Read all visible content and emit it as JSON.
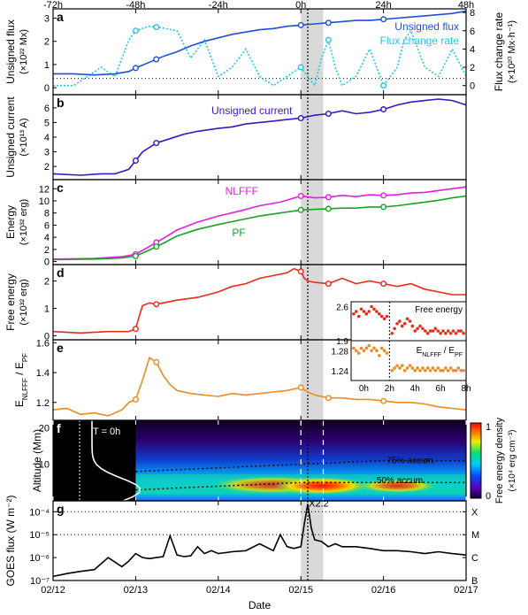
{
  "figure": {
    "top_axis": {
      "ticks": [
        "-72h",
        "-48h",
        "-24h",
        "0h",
        "24h",
        "48h"
      ],
      "values": [
        -72,
        -48,
        -24,
        0,
        24,
        48
      ]
    },
    "bottom_axis": {
      "label": "Date",
      "ticks": [
        "02/12",
        "02/13",
        "02/14",
        "02/15",
        "02/16",
        "02/17"
      ],
      "values": [
        -72,
        -48,
        -24,
        0,
        24,
        48
      ]
    },
    "x_range_hours": [
      -72,
      48
    ],
    "flare_window_hours": [
      0,
      6.5
    ],
    "flare_peak_hours": [
      2
    ]
  },
  "panels": {
    "a": {
      "letter": "a",
      "ylabel": "Unsigned flux",
      "yunit": "(×10²² Mx)",
      "ylabel2": "Flux change rate",
      "yunit2": "(×10²⁰ Mx·h⁻¹)",
      "legend1": "Unsigned flux",
      "legend2": "Flux change rate",
      "yticks": [
        "0",
        "1",
        "2",
        "3"
      ],
      "y2ticks": [
        "0",
        "2",
        "4",
        "6",
        "8"
      ]
    },
    "b": {
      "letter": "b",
      "ylabel": "Unsigned current",
      "yunit": "(×10¹³ A)",
      "legend": "Unsigned current",
      "yticks": [
        "2",
        "3",
        "4",
        "5",
        "6"
      ]
    },
    "c": {
      "letter": "c",
      "ylabel": "Energy",
      "yunit": "(×10³² erg)",
      "label_nlfff": "NLFFF",
      "label_pf": "PF",
      "yticks": [
        "0",
        "2",
        "4",
        "6",
        "8",
        "10",
        "12"
      ]
    },
    "d": {
      "letter": "d",
      "ylabel": "Free energy",
      "yunit": "(×10³² erg)",
      "yticks": [
        "0",
        "1",
        "2"
      ]
    },
    "e": {
      "letter": "e",
      "ylabel": "E",
      "ylabel_sub": "NLFFF",
      "ylabel_mid": " / E",
      "ylabel_sub2": "PF",
      "yticks": [
        "1.2",
        "1.4",
        "1.6"
      ]
    },
    "f": {
      "letter": "f",
      "ylabel": "Altitude (Mm)",
      "yticks": [
        "10",
        "20"
      ],
      "time_label": "T = 0h",
      "contour75": "75% accum.",
      "contour50": "50% accum.",
      "colorbar_label": "Free energy density",
      "colorbar_unit": "(×10⁴ erg cm⁻³)",
      "colorbar_ticks": [
        "0",
        "1"
      ]
    },
    "g": {
      "letter": "g",
      "ylabel": "GOES flux (W m⁻²)",
      "yticks": [
        "10⁻⁴",
        "10⁻⁵",
        "10⁻⁶",
        "10⁻⁷"
      ],
      "class_labels": [
        "X",
        "M",
        "C",
        "B"
      ],
      "flare_label": "X2.2"
    },
    "inset": {
      "title1": "Free energy",
      "title2_main": "E",
      "title2_sub": "NLFFF",
      "title2_mid": " / E",
      "title2_sub2": "PF",
      "yticks1": [
        "2.6",
        "1.9"
      ],
      "yticks2": [
        "1.28",
        "1.24"
      ],
      "xticks": [
        "0h",
        "2h",
        "4h",
        "6h",
        "8h"
      ]
    }
  },
  "colors": {
    "flux": "#1f4fd8",
    "rate": "#22c7e6",
    "current": "#3b16c2",
    "nlfff": "#e320e0",
    "pf": "#18a324",
    "free": "#e82a1a",
    "ratio": "#f08a1e",
    "goes": "#000000",
    "shade": "#d9d9d9"
  },
  "chart_data": [
    {
      "type": "line",
      "title": "",
      "ylabel": "Unsigned flux (×10²² Mx)",
      "ylim": [
        -0.3,
        3.4
      ],
      "y2label": "Flux change rate (×10²⁰ Mx·h⁻¹)",
      "y2lim": [
        -1,
        8.4
      ],
      "series": [
        {
          "name": "Unsigned flux",
          "axis": "left",
          "x": [
            -72,
            -66,
            -60,
            -54,
            -50,
            -48,
            -44,
            -40,
            -36,
            -32,
            -28,
            -24,
            -20,
            -16,
            -12,
            -8,
            -4,
            0,
            4,
            8,
            12,
            16,
            20,
            24,
            28,
            32,
            36,
            40,
            44,
            48
          ],
          "values": [
            0.6,
            0.6,
            0.55,
            0.6,
            0.7,
            0.85,
            1.1,
            1.35,
            1.55,
            1.8,
            2.0,
            2.15,
            2.3,
            2.4,
            2.5,
            2.55,
            2.65,
            2.7,
            2.75,
            2.8,
            2.85,
            2.9,
            2.9,
            2.95,
            3.0,
            3.05,
            3.1,
            3.15,
            3.2,
            3.3
          ]
        },
        {
          "name": "Flux change rate",
          "axis": "right",
          "x": [
            -72,
            -66,
            -62,
            -58,
            -54,
            -50,
            -48,
            -44,
            -40,
            -36,
            -32,
            -28,
            -24,
            -20,
            -16,
            -12,
            -8,
            -4,
            0,
            2,
            4,
            6,
            8,
            10,
            12,
            16,
            20,
            24,
            28,
            30,
            32,
            36,
            40,
            44,
            48
          ],
          "values": [
            0,
            0,
            1,
            2,
            1,
            5,
            6,
            6.5,
            6.3,
            6,
            3,
            5,
            1,
            2,
            4,
            1,
            0,
            1,
            2,
            1,
            0,
            3,
            5,
            2,
            0,
            1,
            4,
            0,
            2,
            5,
            6,
            2,
            1,
            4,
            1
          ]
        }
      ]
    },
    {
      "type": "line",
      "title": "",
      "ylabel": "Unsigned current (×10¹³ A)",
      "ylim": [
        1.1,
        6.9
      ],
      "series": [
        {
          "name": "Unsigned current",
          "x": [
            -72,
            -64,
            -58,
            -54,
            -50,
            -48,
            -46,
            -42,
            -38,
            -34,
            -30,
            -24,
            -20,
            -16,
            -12,
            -8,
            -4,
            0,
            4,
            8,
            12,
            16,
            20,
            24,
            28,
            32,
            36,
            40,
            44,
            48
          ],
          "values": [
            1.5,
            1.4,
            1.5,
            1.5,
            1.8,
            2.4,
            3.0,
            3.6,
            3.9,
            4.2,
            4.4,
            4.6,
            4.7,
            4.9,
            5.0,
            5.1,
            5.2,
            5.3,
            5.5,
            5.6,
            5.8,
            5.6,
            5.7,
            5.9,
            6.2,
            6.4,
            6.5,
            6.6,
            6.5,
            6.2
          ]
        }
      ]
    },
    {
      "type": "line",
      "title": "",
      "ylabel": "Energy (×10³² erg)",
      "ylim": [
        -0.5,
        13.5
      ],
      "series": [
        {
          "name": "NLFFF",
          "x": [
            -72,
            -60,
            -52,
            -48,
            -44,
            -40,
            -36,
            -30,
            -24,
            -18,
            -12,
            -6,
            0,
            4,
            8,
            12,
            16,
            20,
            24,
            28,
            32,
            36,
            40,
            44,
            48
          ],
          "values": [
            0.4,
            0.5,
            0.8,
            1.2,
            2.5,
            3.8,
            5.2,
            6.5,
            7.5,
            8.3,
            9.2,
            9.8,
            10.8,
            10.5,
            10.6,
            10.9,
            10.7,
            11.0,
            10.9,
            11.0,
            11.3,
            11.4,
            11.7,
            12.0,
            12.3
          ]
        },
        {
          "name": "PF",
          "x": [
            -72,
            -60,
            -52,
            -48,
            -44,
            -40,
            -36,
            -30,
            -24,
            -18,
            -12,
            -6,
            0,
            4,
            8,
            12,
            16,
            20,
            24,
            28,
            32,
            36,
            40,
            44,
            48
          ],
          "values": [
            0.3,
            0.4,
            0.6,
            0.9,
            1.9,
            3.0,
            4.2,
            5.3,
            6.1,
            6.8,
            7.5,
            8.0,
            8.5,
            8.6,
            8.7,
            8.8,
            8.8,
            9.0,
            9.0,
            9.2,
            9.5,
            9.8,
            10.1,
            10.5,
            10.8
          ]
        }
      ]
    },
    {
      "type": "line",
      "title": "",
      "ylabel": "Free energy (×10³² erg)",
      "ylim": [
        -0.15,
        2.6
      ],
      "series": [
        {
          "name": "",
          "x": [
            -72,
            -64,
            -56,
            -52,
            -50,
            -48,
            -47,
            -46,
            -44,
            -42,
            -40,
            -36,
            -30,
            -24,
            -20,
            -16,
            -12,
            -8,
            -4,
            -2,
            0,
            1,
            2,
            4,
            8,
            12,
            16,
            20,
            24,
            28,
            32,
            36,
            40,
            44,
            48
          ],
          "values": [
            0.15,
            0.1,
            0.15,
            0.15,
            0.15,
            0.25,
            0.7,
            1.1,
            1.2,
            1.15,
            1.2,
            1.3,
            1.4,
            1.6,
            1.8,
            1.9,
            2.1,
            2.2,
            2.3,
            2.45,
            2.35,
            2.1,
            2.0,
            1.95,
            1.9,
            2.1,
            1.9,
            2.0,
            1.9,
            1.8,
            1.9,
            1.7,
            1.6,
            1.5,
            1.5
          ]
        }
      ]
    },
    {
      "type": "line",
      "title": "",
      "ylabel": "E_NLFFF / E_PF",
      "ylim": [
        1.08,
        1.62
      ],
      "series": [
        {
          "name": "",
          "x": [
            -72,
            -68,
            -64,
            -60,
            -56,
            -52,
            -50,
            -48,
            -46,
            -44,
            -42,
            -40,
            -38,
            -36,
            -32,
            -28,
            -24,
            -20,
            -16,
            -12,
            -8,
            -4,
            0,
            2,
            4,
            8,
            12,
            16,
            20,
            24,
            28,
            32,
            36,
            40,
            44,
            48
          ],
          "values": [
            1.15,
            1.16,
            1.12,
            1.13,
            1.11,
            1.15,
            1.2,
            1.22,
            1.35,
            1.5,
            1.47,
            1.38,
            1.32,
            1.28,
            1.26,
            1.25,
            1.24,
            1.26,
            1.25,
            1.26,
            1.27,
            1.28,
            1.3,
            1.27,
            1.25,
            1.23,
            1.23,
            1.22,
            1.22,
            1.21,
            1.2,
            1.2,
            1.19,
            1.17,
            1.16,
            1.15
          ]
        }
      ]
    },
    {
      "type": "heatmap",
      "title": "",
      "ylabel": "Altitude (Mm)",
      "ylim": [
        0,
        22
      ],
      "colorbar": "Free energy density (×10⁴ erg cm⁻³)",
      "clim": [
        0,
        1
      ],
      "contours": [
        {
          "name": "75% accum.",
          "x": [
            -48,
            -24,
            0,
            24,
            48
          ],
          "values": [
            8,
            9,
            10,
            11,
            11
          ]
        },
        {
          "name": "50% accum.",
          "x": [
            -48,
            -24,
            0,
            24,
            48
          ],
          "values": [
            3,
            4,
            5,
            5,
            5
          ]
        }
      ]
    },
    {
      "type": "line",
      "title": "",
      "ylabel": "GOES flux (W m⁻²)",
      "yscale": "log",
      "ylim": [
        1e-07,
        0.0003
      ],
      "series": [
        {
          "name": "",
          "x": [
            -72,
            -68,
            -64,
            -60,
            -56,
            -52,
            -50,
            -48,
            -46,
            -44,
            -42,
            -40,
            -38,
            -36,
            -34,
            -32,
            -30,
            -28,
            -26,
            -24,
            -20,
            -16,
            -12,
            -8,
            -6,
            -4,
            -2,
            0,
            1,
            2,
            3,
            4,
            6,
            8,
            10,
            12,
            16,
            20,
            24,
            28,
            32,
            36,
            40,
            44,
            48
          ],
          "values": [
            1.5e-07,
            2e-07,
            2.5e-07,
            3e-07,
            1e-06,
            4e-07,
            7e-07,
            1.5e-06,
            1e-06,
            9e-07,
            1e-06,
            1.1e-06,
            9e-06,
            1.3e-06,
            1.1e-06,
            1.2e-06,
            3e-06,
            1.5e-06,
            2e-06,
            1.5e-06,
            1.8e-06,
            2e-06,
            4e-06,
            2e-06,
            1e-05,
            3e-06,
            2.5e-06,
            3e-06,
            3e-05,
            0.00022,
            2e-05,
            6e-06,
            5e-06,
            3e-06,
            4e-06,
            3e-06,
            3e-06,
            2.5e-06,
            2e-06,
            2e-06,
            1.8e-06,
            1.5e-06,
            1.8e-06,
            1.5e-06,
            1.3e-06
          ]
        }
      ]
    },
    {
      "type": "scatter",
      "title": "Free energy",
      "xlim": [
        -1,
        8
      ],
      "ylim": [
        1.9,
        2.7
      ],
      "series": [
        {
          "name": "Free energy",
          "x": [
            -0.8,
            -0.6,
            -0.4,
            -0.2,
            0,
            0.2,
            0.4,
            0.6,
            0.8,
            1.0,
            1.2,
            1.4,
            1.6,
            1.8,
            2.2,
            2.4,
            2.6,
            2.8,
            3.0,
            3.2,
            3.4,
            3.6,
            3.8,
            4.0,
            4.2,
            4.4,
            4.6,
            4.8,
            5.0,
            5.2,
            5.4,
            5.6,
            5.8,
            6.0,
            6.2,
            6.4,
            6.6,
            6.8,
            7.0,
            7.2,
            7.4,
            7.6,
            7.8
          ],
          "values": [
            2.45,
            2.5,
            2.4,
            2.55,
            2.5,
            2.45,
            2.5,
            2.6,
            2.55,
            2.5,
            2.45,
            2.4,
            2.35,
            2.4,
            2.05,
            2.15,
            2.25,
            2.3,
            2.2,
            2.25,
            2.35,
            2.3,
            2.2,
            2.1,
            2.15,
            2.2,
            2.15,
            2.1,
            2.05,
            2.1,
            2.1,
            2.15,
            2.1,
            2.05,
            2.1,
            2.05,
            2.1,
            2.05,
            2.1,
            2.05,
            2.1,
            2.1,
            2.05
          ]
        }
      ]
    },
    {
      "type": "scatter",
      "title": "E_NLFFF / E_PF",
      "xlim": [
        -1,
        8
      ],
      "ylim": [
        1.22,
        1.3
      ],
      "series": [
        {
          "name": "E_NLFFF / E_PF",
          "x": [
            -0.8,
            -0.6,
            -0.4,
            -0.2,
            0,
            0.2,
            0.4,
            0.6,
            0.8,
            1.0,
            1.2,
            1.4,
            1.6,
            1.8,
            2.2,
            2.4,
            2.6,
            2.8,
            3.0,
            3.2,
            3.4,
            3.6,
            3.8,
            4.0,
            4.2,
            4.4,
            4.6,
            4.8,
            5.0,
            5.2,
            5.4,
            5.6,
            5.8,
            6.0,
            6.2,
            6.4,
            6.6,
            6.8,
            7.0,
            7.2,
            7.4,
            7.6,
            7.8
          ],
          "values": [
            1.285,
            1.28,
            1.275,
            1.285,
            1.28,
            1.285,
            1.29,
            1.28,
            1.285,
            1.28,
            1.27,
            1.285,
            1.28,
            1.275,
            1.24,
            1.245,
            1.25,
            1.245,
            1.25,
            1.24,
            1.245,
            1.25,
            1.245,
            1.24,
            1.245,
            1.24,
            1.245,
            1.24,
            1.245,
            1.24,
            1.245,
            1.24,
            1.245,
            1.24,
            1.24,
            1.245,
            1.24,
            1.245,
            1.24,
            1.24,
            1.245,
            1.24,
            1.24
          ]
        }
      ]
    }
  ]
}
